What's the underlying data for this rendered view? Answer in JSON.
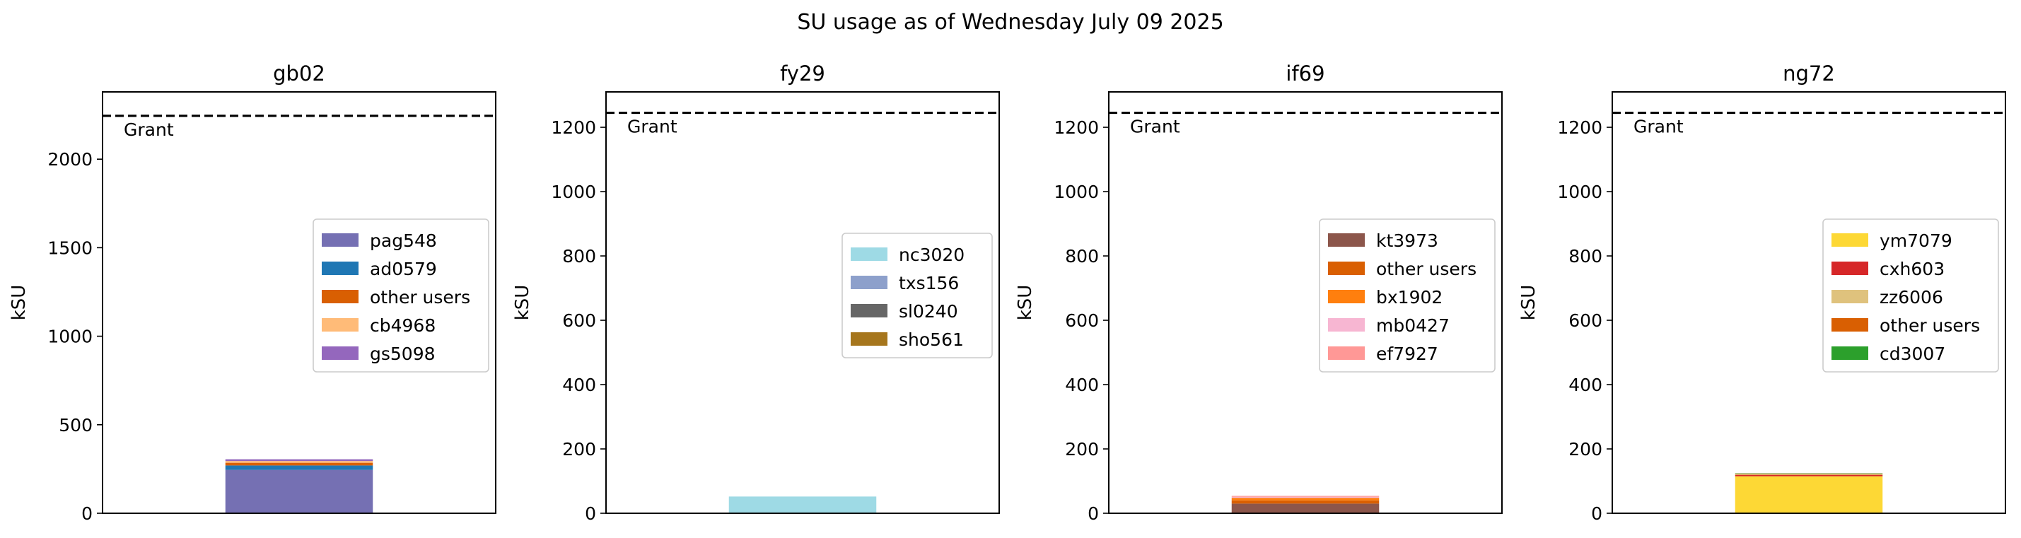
{
  "figure_title": "SU usage as of Wednesday July 09 2025",
  "chart_data": [
    {
      "type": "bar",
      "stacked": true,
      "title": "gb02",
      "xlabel": "",
      "ylabel": "kSU",
      "ylim": [
        0,
        2380
      ],
      "yticks": [
        0,
        500,
        1000,
        1500,
        2000
      ],
      "grid": false,
      "legend_position": "center-right",
      "grant": {
        "value": 2245,
        "label": "Grant"
      },
      "series": [
        {
          "name": "pag548",
          "value": 245,
          "color": "#7570b3"
        },
        {
          "name": "ad0579",
          "value": 25,
          "color": "#1f77b4"
        },
        {
          "name": "other users",
          "value": 15,
          "color": "#d95f02"
        },
        {
          "name": "cb4968",
          "value": 10,
          "color": "#ffbb78"
        },
        {
          "name": "gs5098",
          "value": 10,
          "color": "#9467bd"
        }
      ]
    },
    {
      "type": "bar",
      "stacked": true,
      "title": "fy29",
      "xlabel": "",
      "ylabel": "kSU",
      "ylim": [
        0,
        1310
      ],
      "yticks": [
        0,
        200,
        400,
        600,
        800,
        1000,
        1200
      ],
      "grid": false,
      "legend_position": "center-right",
      "grant": {
        "value": 1245,
        "label": "Grant"
      },
      "series": [
        {
          "name": "nc3020",
          "value": 52,
          "color": "#9edae5"
        },
        {
          "name": "txs156",
          "value": 0,
          "color": "#8da0cb"
        },
        {
          "name": "sl0240",
          "value": 0,
          "color": "#666666"
        },
        {
          "name": "sho561",
          "value": 0,
          "color": "#a6761d"
        }
      ]
    },
    {
      "type": "bar",
      "stacked": true,
      "title": "if69",
      "xlabel": "",
      "ylabel": "kSU",
      "ylim": [
        0,
        1310
      ],
      "yticks": [
        0,
        200,
        400,
        600,
        800,
        1000,
        1200
      ],
      "grid": false,
      "legend_position": "center-right",
      "grant": {
        "value": 1245,
        "label": "Grant"
      },
      "series": [
        {
          "name": "kt3973",
          "value": 30,
          "color": "#8c564b"
        },
        {
          "name": "other users",
          "value": 10,
          "color": "#d95f02"
        },
        {
          "name": "bx1902",
          "value": 8,
          "color": "#ff7f0e"
        },
        {
          "name": "mb0427",
          "value": 3,
          "color": "#f7b6d2"
        },
        {
          "name": "ef7927",
          "value": 3,
          "color": "#ff9896"
        }
      ]
    },
    {
      "type": "bar",
      "stacked": true,
      "title": "ng72",
      "xlabel": "",
      "ylabel": "kSU",
      "ylim": [
        0,
        1310
      ],
      "yticks": [
        0,
        200,
        400,
        600,
        800,
        1000,
        1200
      ],
      "grid": false,
      "legend_position": "center-right",
      "grant": {
        "value": 1245,
        "label": "Grant"
      },
      "series": [
        {
          "name": "ym7079",
          "value": 115,
          "color": "#fdd835"
        },
        {
          "name": "cxh603",
          "value": 4,
          "color": "#d62728"
        },
        {
          "name": "zz6006",
          "value": 2,
          "color": "#dfc27d"
        },
        {
          "name": "other users",
          "value": 2,
          "color": "#d95f02"
        },
        {
          "name": "cd3007",
          "value": 1,
          "color": "#2ca02c"
        }
      ]
    }
  ]
}
